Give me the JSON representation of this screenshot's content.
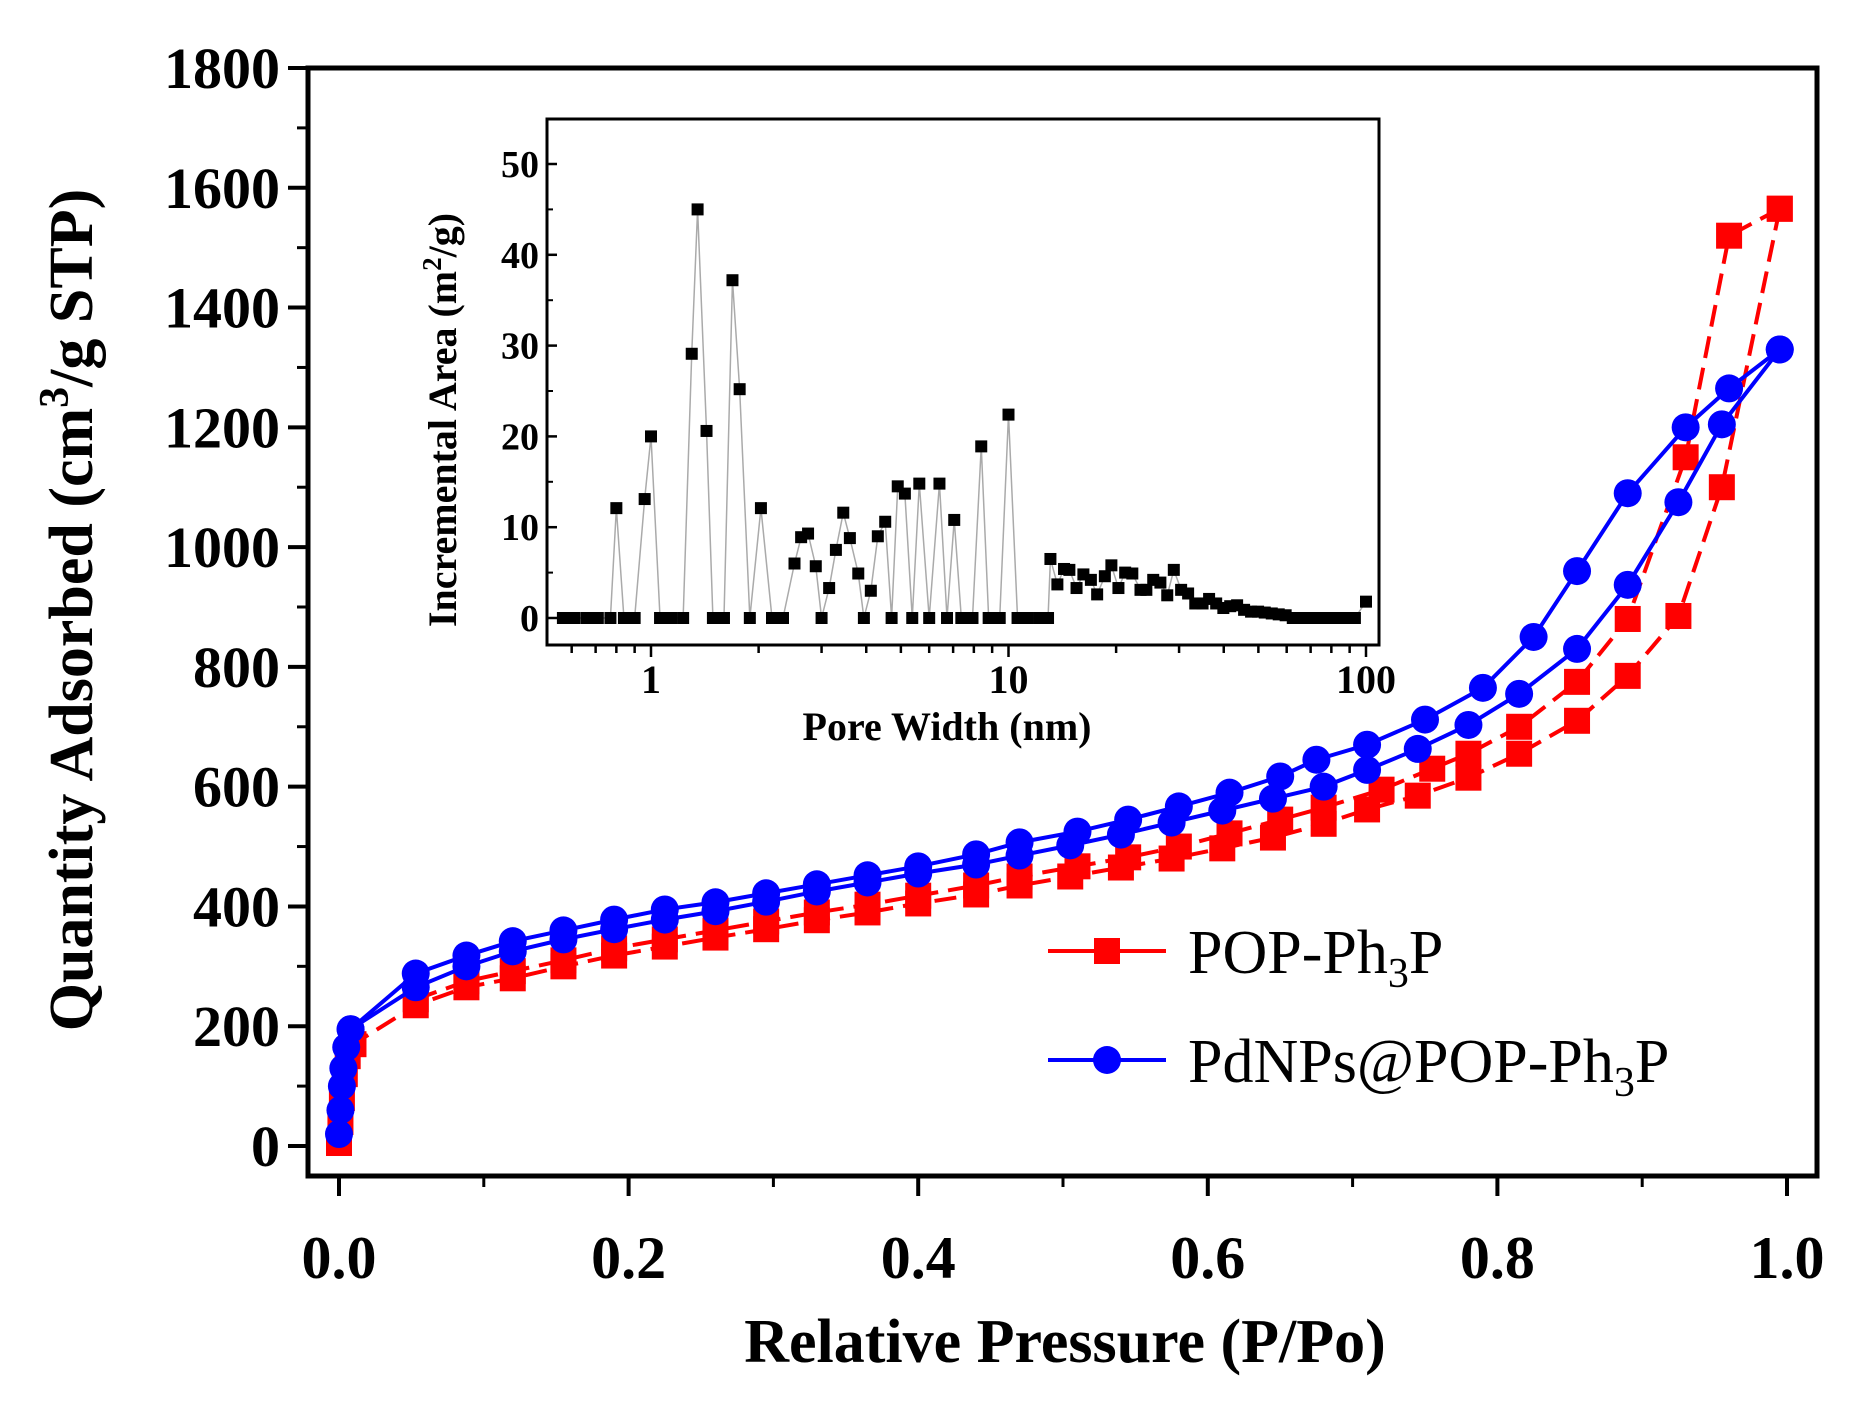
{
  "colors": {
    "series1": "#ff0000",
    "series2": "#0000ff",
    "inset": "#000000",
    "inset_line": "#aaaaaa"
  },
  "chart_data": [
    {
      "type": "line",
      "title": "",
      "xlabel": "Relative Pressure (P/Po)",
      "ylabel": "Quantity Adsorbed (cm³/g STP)",
      "ylabel_parts": {
        "pre": "Quantity Adsorbed (cm",
        "sup": "3",
        "post": "/g STP)"
      },
      "xlim": [
        -0.02,
        1.03
      ],
      "ylim": [
        -40,
        1800
      ],
      "xticks": [
        "0.0",
        "0.2",
        "0.4",
        "0.6",
        "0.8",
        "1.0"
      ],
      "xtick_values": [
        0,
        0.2,
        0.4,
        0.6,
        0.8,
        1.0
      ],
      "yticks": [
        "0",
        "200",
        "400",
        "600",
        "800",
        "1000",
        "1200",
        "1400",
        "1600",
        "1800"
      ],
      "ytick_values": [
        0,
        200,
        400,
        600,
        800,
        1000,
        1200,
        1400,
        1600,
        1800
      ],
      "grid": false,
      "legend_position": "right",
      "series": [
        {
          "name": "POP-Ph3P",
          "name_parts": {
            "pre": "POP-Ph",
            "sub": "3",
            "post": "P"
          },
          "marker": "square",
          "line": "dashed",
          "adsorption": {
            "x": [
              0.0,
              0.001,
              0.002,
              0.004,
              0.006,
              0.01,
              0.053,
              0.088,
              0.12,
              0.155,
              0.19,
              0.225,
              0.26,
              0.295,
              0.33,
              0.365,
              0.4,
              0.44,
              0.47,
              0.505,
              0.54,
              0.575,
              0.61,
              0.645,
              0.68,
              0.71,
              0.745,
              0.78,
              0.815,
              0.855,
              0.89,
              0.925,
              0.955,
              0.995
            ],
            "y": [
              5,
              40,
              80,
              120,
              150,
              170,
              235,
              265,
              280,
              300,
              318,
              333,
              348,
              362,
              377,
              390,
              405,
              420,
              435,
              450,
              465,
              480,
              497,
              515,
              538,
              562,
              585,
              615,
              655,
              710,
              785,
              885,
              1100,
              1565
            ]
          },
          "desorption": {
            "x": [
              0.995,
              0.96,
              0.93,
              0.89,
              0.855,
              0.815,
              0.78,
              0.755,
              0.72,
              0.68,
              0.65,
              0.615,
              0.58,
              0.545,
              0.51,
              0.47,
              0.44,
              0.4,
              0.365,
              0.33,
              0.295,
              0.26,
              0.225,
              0.19,
              0.155,
              0.12,
              0.088,
              0.053
            ],
            "y": [
              1565,
              1520,
              1150,
              880,
              775,
              700,
              655,
              630,
              595,
              565,
              545,
              522,
              500,
              482,
              467,
              450,
              435,
              418,
              403,
              390,
              375,
              360,
              345,
              330,
              310,
              292,
              275,
              245
            ]
          }
        },
        {
          "name": "PdNPs@POP-Ph3P",
          "name_parts": {
            "pre": "PdNPs@POP-Ph",
            "sub": "3",
            "post": "P"
          },
          "marker": "circle",
          "line": "solid",
          "adsorption": {
            "x": [
              0.0,
              0.001,
              0.002,
              0.003,
              0.005,
              0.008,
              0.053,
              0.088,
              0.12,
              0.155,
              0.19,
              0.225,
              0.26,
              0.295,
              0.33,
              0.365,
              0.4,
              0.44,
              0.47,
              0.505,
              0.54,
              0.575,
              0.61,
              0.645,
              0.68,
              0.71,
              0.745,
              0.78,
              0.815,
              0.855,
              0.89,
              0.925,
              0.955,
              0.995
            ],
            "y": [
              20,
              60,
              100,
              130,
              165,
              195,
              265,
              300,
              325,
              345,
              362,
              378,
              392,
              408,
              425,
              440,
              455,
              470,
              485,
              502,
              520,
              540,
              560,
              580,
              600,
              628,
              663,
              703,
              755,
              830,
              937,
              1075,
              1205,
              1330
            ]
          },
          "desorption": {
            "x": [
              0.995,
              0.96,
              0.93,
              0.89,
              0.855,
              0.825,
              0.79,
              0.75,
              0.71,
              0.675,
              0.65,
              0.615,
              0.58,
              0.545,
              0.51,
              0.47,
              0.44,
              0.4,
              0.365,
              0.33,
              0.295,
              0.26,
              0.225,
              0.19,
              0.155,
              0.12,
              0.088,
              0.053,
              0.008
            ],
            "y": [
              1330,
              1265,
              1200,
              1090,
              960,
              850,
              765,
              712,
              670,
              645,
              617,
              590,
              567,
              545,
              525,
              507,
              487,
              467,
              452,
              437,
              422,
              407,
              395,
              378,
              360,
              342,
              318,
              288,
              195
            ]
          }
        }
      ]
    },
    {
      "type": "scatter",
      "title": "",
      "xlabel": "Pore Width (nm)",
      "ylabel": "Incremental Area (m²/g)",
      "ylabel_parts": {
        "pre": "Incremental Area (m",
        "sup": "2",
        "post": "/g)"
      },
      "xscale": "log",
      "xlim": [
        0.5,
        105
      ],
      "ylim": [
        -2,
        55
      ],
      "xticks": [
        "1",
        "10",
        "100"
      ],
      "xtick_values": [
        1,
        10,
        100
      ],
      "yticks": [
        "0",
        "10",
        "20",
        "30",
        "40",
        "50"
      ],
      "ytick_values": [
        0,
        10,
        20,
        30,
        40,
        50
      ],
      "series": [
        {
          "name": "Incremental Area",
          "x": [
            0.567,
            0.61,
            0.66,
            0.71,
            0.77,
            0.8,
            0.84,
            0.9,
            0.96,
            1.0,
            1.06,
            1.14,
            1.23,
            1.3,
            1.35,
            1.43,
            1.49,
            1.6,
            1.69,
            1.77,
            1.89,
            2.03,
            2.18,
            2.34,
            2.52,
            2.63,
            2.75,
            2.89,
            3.0,
            3.15,
            3.29,
            3.45,
            3.6,
            3.8,
            3.94,
            4.12,
            4.31,
            4.52,
            4.71,
            4.9,
            5.13,
            5.38,
            5.63,
            6.0,
            6.41,
            6.73,
            7.05,
            7.38,
            7.93,
            8.39,
            8.8,
            9.45,
            10.0,
            10.6,
            11.3,
            12.2,
            12.9,
            13.1,
            13.7,
            14.3,
            14.8,
            15.5,
            16.2,
            17.0,
            17.7,
            18.6,
            19.4,
            20.3,
            21.2,
            22.2,
            23.4,
            24.3,
            25.4,
            26.6,
            27.8,
            29.0,
            30.4,
            31.8,
            33.3,
            34.9,
            36.4,
            38.1,
            39.9,
            41.7,
            43.6,
            45.6,
            47.7,
            49.9,
            52.1,
            54.5,
            57.0,
            59.6,
            62.4,
            65.6,
            69.0,
            72.5,
            76.2,
            80.1,
            84.2,
            88.6,
            93.1,
            100
          ],
          "y": [
            0,
            0,
            0,
            0,
            0,
            12.1,
            0,
            0,
            13.1,
            20.0,
            0,
            0,
            0,
            29.1,
            45.0,
            20.6,
            0,
            0,
            37.2,
            25.2,
            0,
            12.1,
            0,
            0,
            6.0,
            8.9,
            9.3,
            5.7,
            0,
            3.3,
            7.5,
            11.6,
            8.8,
            4.9,
            0,
            3.0,
            9.0,
            10.6,
            0,
            14.5,
            13.7,
            0,
            14.8,
            0,
            14.8,
            0,
            10.8,
            0,
            0,
            18.9,
            0,
            0,
            22.4,
            0,
            0,
            0,
            0,
            6.5,
            3.7,
            5.4,
            5.3,
            3.3,
            4.8,
            4.2,
            2.6,
            4.6,
            5.8,
            3.3,
            5.0,
            4.9,
            3.1,
            3.1,
            4.2,
            3.9,
            2.5,
            5.3,
            3.1,
            2.7,
            1.6,
            1.6,
            2.1,
            1.6,
            1.1,
            1.3,
            1.4,
            0.9,
            0.7,
            0.7,
            0.6,
            0.5,
            0.4,
            0.3,
            0,
            0,
            0,
            0,
            0,
            0,
            0,
            0,
            0,
            1.8
          ]
        }
      ]
    }
  ]
}
